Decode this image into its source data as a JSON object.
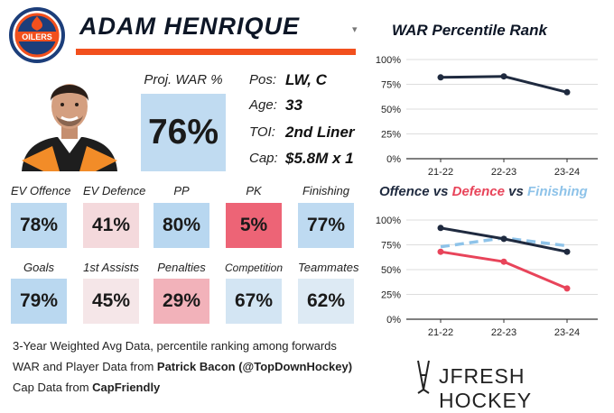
{
  "header": {
    "team": "OILERS",
    "player_name": "ADAM HENRIQUE",
    "dropdown_glyph": "▾"
  },
  "war": {
    "label": "Proj. WAR %",
    "value": "76%",
    "pct": 76
  },
  "info": [
    {
      "label": "Pos:",
      "value": "LW, C"
    },
    {
      "label": "Age:",
      "value": "33"
    },
    {
      "label": "TOI:",
      "value": "2nd Liner"
    },
    {
      "label": "Cap:",
      "value": "$5.8M x 1"
    }
  ],
  "stats_row1": [
    {
      "label": "EV Offence",
      "value": "78%",
      "pct": 78
    },
    {
      "label": "EV Defence",
      "value": "41%",
      "pct": 41
    },
    {
      "label": "PP",
      "value": "80%",
      "pct": 80
    },
    {
      "label": "PK",
      "value": "5%",
      "pct": 5
    },
    {
      "label": "Finishing",
      "value": "77%",
      "pct": 77
    }
  ],
  "stats_row2": [
    {
      "label": "Goals",
      "value": "79%",
      "pct": 79
    },
    {
      "label": "1st Assists",
      "value": "45%",
      "pct": 45
    },
    {
      "label": "Penalties",
      "value": "29%",
      "pct": 29
    },
    {
      "label": "Competition",
      "value": "67%",
      "pct": 67
    },
    {
      "label": "Teammates",
      "value": "62%",
      "pct": 62
    }
  ],
  "footer": {
    "line1": "3-Year Weighted Avg Data, percentile ranking among forwards",
    "line2_prefix": "WAR and Player Data from ",
    "line2_bold": "Patrick Bacon (@TopDownHockey)",
    "line3_prefix": "Cap Data from ",
    "line3_bold": "CapFriendly"
  },
  "brand": "JFRESH HOCKEY",
  "colors": {
    "navy": "#1f2a3f",
    "red": "#e8445a",
    "light_blue": "#8ec3e9",
    "orange": "#f2501d"
  },
  "chart_data": [
    {
      "type": "line",
      "title": "WAR Percentile Rank",
      "categories": [
        "21-22",
        "22-23",
        "23-24"
      ],
      "yticks": [
        "0%",
        "25%",
        "50%",
        "75%",
        "100%"
      ],
      "ylim": [
        0,
        100
      ],
      "series": [
        {
          "name": "WAR",
          "values": [
            82,
            83,
            67
          ],
          "color": "#1f2a3f",
          "dashed": false
        }
      ]
    },
    {
      "type": "line",
      "title_parts": [
        {
          "text": "Offence",
          "color": "#1f2a3f"
        },
        {
          "text": " vs ",
          "color": "#1f2a3f"
        },
        {
          "text": "Defence",
          "color": "#e8445a"
        },
        {
          "text": " vs ",
          "color": "#1f2a3f"
        },
        {
          "text": "Finishing",
          "color": "#8ec3e9"
        }
      ],
      "categories": [
        "21-22",
        "22-23",
        "23-24"
      ],
      "yticks": [
        "0%",
        "25%",
        "50%",
        "75%",
        "100%"
      ],
      "ylim": [
        0,
        100
      ],
      "series": [
        {
          "name": "Finishing",
          "values": [
            73,
            82,
            74
          ],
          "color": "#8ec3e9",
          "dashed": true
        },
        {
          "name": "Offence",
          "values": [
            92,
            81,
            68
          ],
          "color": "#1f2a3f",
          "dashed": false
        },
        {
          "name": "Defence",
          "values": [
            68,
            58,
            31
          ],
          "color": "#e8445a",
          "dashed": false
        }
      ]
    }
  ]
}
